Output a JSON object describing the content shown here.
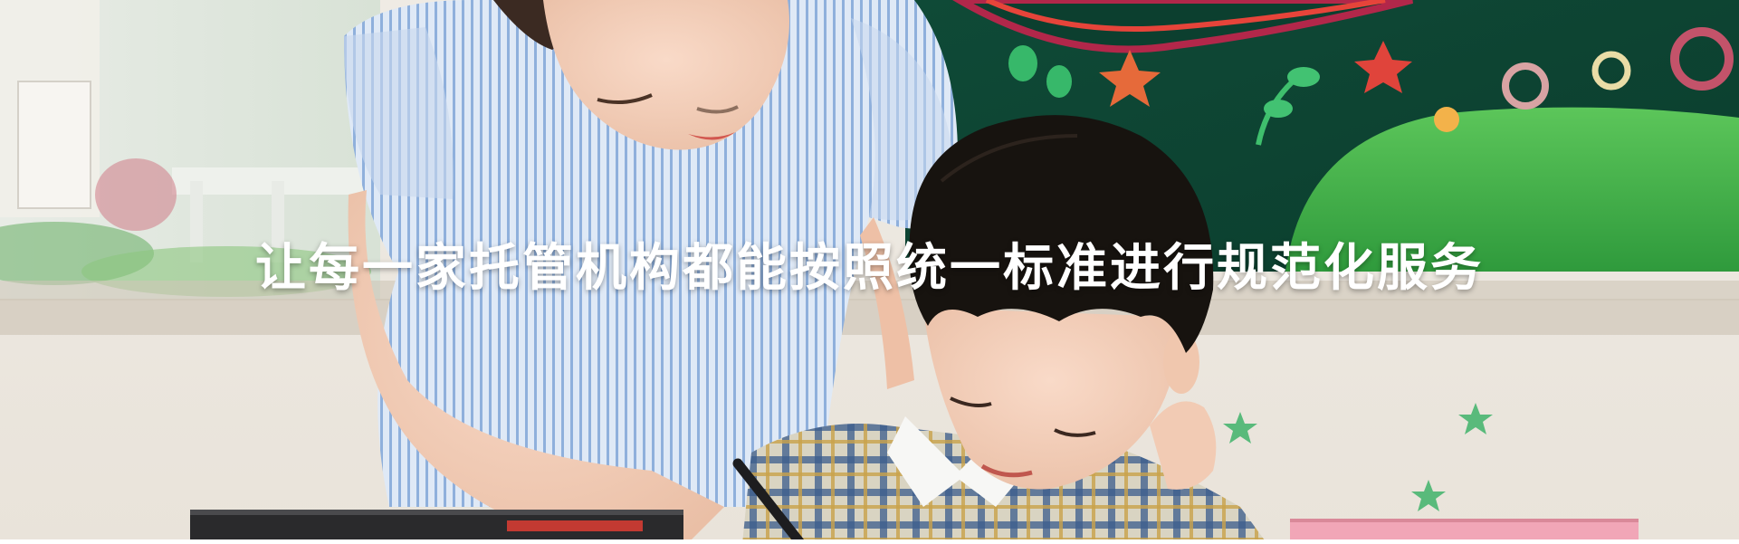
{
  "hero": {
    "headline": "让每一家托管机构都能按照统一标准进行规范化服务",
    "headline_color": "#ffffff"
  }
}
